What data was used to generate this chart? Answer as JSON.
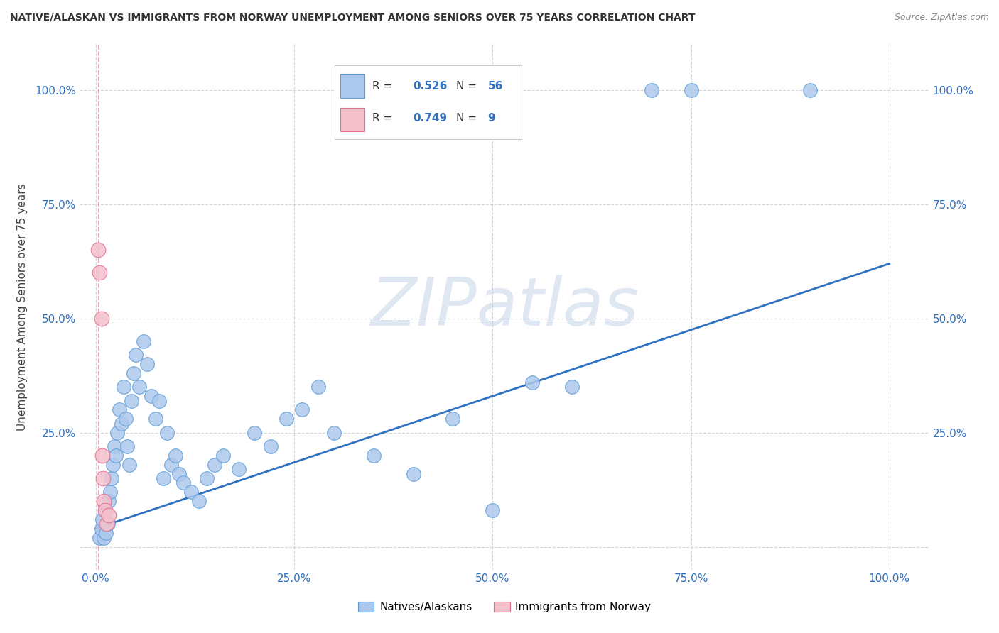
{
  "title": "NATIVE/ALASKAN VS IMMIGRANTS FROM NORWAY UNEMPLOYMENT AMONG SENIORS OVER 75 YEARS CORRELATION CHART",
  "source": "Source: ZipAtlas.com",
  "ylabel": "Unemployment Among Seniors over 75 years",
  "watermark": "ZIPatlas",
  "blue_R": 0.526,
  "blue_N": 56,
  "pink_R": 0.749,
  "pink_N": 9,
  "blue_color": "#adc8ed",
  "blue_edge": "#5b9bd5",
  "pink_color": "#f4c0cc",
  "pink_edge": "#e07090",
  "trend_color": "#3070c0",
  "legend_label_blue": "Natives/Alaskans",
  "legend_label_pink": "Immigrants from Norway",
  "blue_points_x": [
    0.005,
    0.007,
    0.008,
    0.01,
    0.012,
    0.013,
    0.015,
    0.016,
    0.018,
    0.02,
    0.022,
    0.023,
    0.025,
    0.027,
    0.03,
    0.032,
    0.035,
    0.038,
    0.04,
    0.042,
    0.045,
    0.048,
    0.05,
    0.055,
    0.06,
    0.065,
    0.07,
    0.075,
    0.08,
    0.085,
    0.09,
    0.095,
    0.1,
    0.105,
    0.11,
    0.12,
    0.13,
    0.14,
    0.15,
    0.16,
    0.18,
    0.2,
    0.22,
    0.24,
    0.26,
    0.28,
    0.3,
    0.35,
    0.4,
    0.45,
    0.5,
    0.55,
    0.6,
    0.7,
    0.75,
    0.9
  ],
  "blue_points_y": [
    0.02,
    0.04,
    0.06,
    0.02,
    0.08,
    0.03,
    0.05,
    0.1,
    0.12,
    0.15,
    0.18,
    0.22,
    0.2,
    0.25,
    0.3,
    0.27,
    0.35,
    0.28,
    0.22,
    0.18,
    0.32,
    0.38,
    0.42,
    0.35,
    0.45,
    0.4,
    0.33,
    0.28,
    0.32,
    0.15,
    0.25,
    0.18,
    0.2,
    0.16,
    0.14,
    0.12,
    0.1,
    0.15,
    0.18,
    0.2,
    0.17,
    0.25,
    0.22,
    0.28,
    0.3,
    0.35,
    0.25,
    0.2,
    0.16,
    0.28,
    0.08,
    0.36,
    0.35,
    1.0,
    1.0,
    1.0
  ],
  "pink_points_x": [
    0.003,
    0.005,
    0.007,
    0.008,
    0.009,
    0.01,
    0.012,
    0.014,
    0.016
  ],
  "pink_points_y": [
    0.65,
    0.6,
    0.5,
    0.2,
    0.15,
    0.1,
    0.08,
    0.05,
    0.07
  ],
  "trend_x0": 0.0,
  "trend_y0": 0.04,
  "trend_x1": 1.0,
  "trend_y1": 0.62,
  "vline_x": 0.004,
  "xlim": [
    -0.02,
    1.05
  ],
  "ylim": [
    -0.05,
    1.1
  ],
  "xticks": [
    0.0,
    0.25,
    0.5,
    0.75,
    1.0
  ],
  "yticks": [
    0.0,
    0.25,
    0.5,
    0.75,
    1.0
  ],
  "xticklabels": [
    "0.0%",
    "25.0%",
    "50.0%",
    "75.0%",
    "100.0%"
  ],
  "yticklabels": [
    "",
    "25.0%",
    "50.0%",
    "75.0%",
    "100.0%"
  ],
  "right_yticklabels": [
    "",
    "25.0%",
    "50.0%",
    "75.0%",
    "100.0%"
  ]
}
